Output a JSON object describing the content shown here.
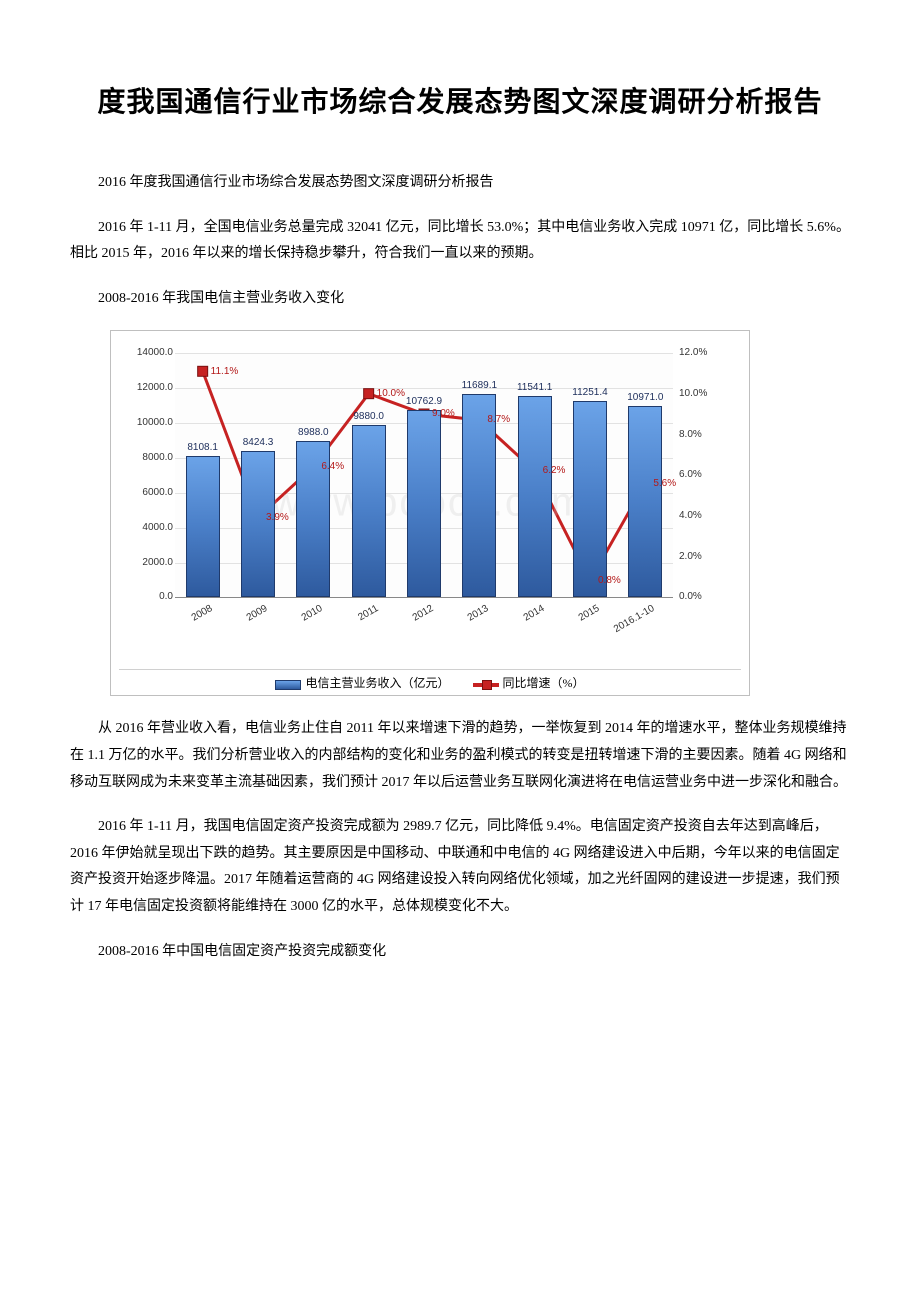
{
  "title": "度我国通信行业市场综合发展态势图文深度调研分析报告",
  "p1": "2016 年度我国通信行业市场综合发展态势图文深度调研分析报告",
  "p2": "2016 年 1-11 月，全国电信业务总量完成 32041 亿元，同比增长 53.0%；其中电信业务收入完成 10971 亿，同比增长 5.6%。相比 2015 年，2016 年以来的增长保持稳步攀升，符合我们一直以来的预期。",
  "p3": "2008-2016 年我国电信主营业务收入变化",
  "p4": "从 2016 年营业收入看，电信业务止住自 2011 年以来增速下滑的趋势，一举恢复到 2014 年的增速水平，整体业务规模维持在 1.1 万亿的水平。我们分析营业收入的内部结构的变化和业务的盈利模式的转变是扭转增速下滑的主要因素。随着 4G 网络和移动互联网成为未来变革主流基础因素，我们预计 2017 年以后运营业务互联网化演进将在电信运营业务中进一步深化和融合。",
  "p5": "2016 年 1-11 月，我国电信固定资产投资完成额为 2989.7 亿元，同比降低 9.4%。电信固定资产投资自去年达到高峰后，2016 年伊始就呈现出下跌的趋势。其主要原因是中国移动、中联通和中电信的 4G 网络建设进入中后期，今年以来的电信固定资产投资开始逐步降温。2017 年随着运营商的 4G 网络建设投入转向网络优化领域，加之光纤固网的建设进一步提速，我们预计 17 年电信固定投资额将能维持在 3000 亿的水平，总体规模变化不大。",
  "p6": "2008-2016 年中国电信固定资产投资完成额变化",
  "chart": {
    "type": "bar+line",
    "categories": [
      "2008",
      "2009",
      "2010",
      "2011",
      "2012",
      "2013",
      "2014",
      "2015",
      "2016.1-10"
    ],
    "bar_values": [
      8108.1,
      8424.3,
      8988.0,
      9880.0,
      10762.9,
      11689.1,
      11541.1,
      11251.4,
      10971.0
    ],
    "bar_labels": [
      "8108.1",
      "8424.3",
      "8988.0",
      "9880.0",
      "10762.9",
      "11689.1",
      "11541.1",
      "11251.4",
      "10971.0"
    ],
    "line_values": [
      11.1,
      3.9,
      6.4,
      10.0,
      9.0,
      8.7,
      6.2,
      0.8,
      5.6
    ],
    "line_labels": [
      "11.1%",
      "3.9%",
      "6.4%",
      "10.0%",
      "9.0%",
      "8.7%",
      "6.2%",
      "0.8%",
      "5.6%"
    ],
    "y1_max": 14000,
    "y1_step": 2000,
    "y1_ticks": [
      "0.0",
      "2000.0",
      "4000.0",
      "6000.0",
      "8000.0",
      "10000.0",
      "12000.0",
      "14000.0"
    ],
    "y2_max": 12,
    "y2_step": 2,
    "y2_ticks": [
      "0.0%",
      "2.0%",
      "4.0%",
      "6.0%",
      "8.0%",
      "10.0%",
      "12.0%"
    ],
    "bar_color": "#3d6bb0",
    "line_color": "#c62222",
    "legend_bar": "电信主营业务收入（亿元）",
    "legend_line": "同比增速（%）",
    "watermark": "www.bdocx.com"
  }
}
